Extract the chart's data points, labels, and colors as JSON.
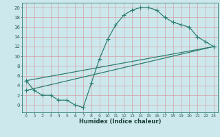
{
  "title": "",
  "xlabel": "Humidex (Indice chaleur)",
  "ylabel": "",
  "bg_color": "#cce8ec",
  "grid_color": "#aacdd4",
  "line_color": "#2e7d6e",
  "xlim": [
    -0.5,
    23.5
  ],
  "ylim": [
    -1.5,
    21.0
  ],
  "xticks": [
    0,
    1,
    2,
    3,
    4,
    5,
    6,
    7,
    8,
    9,
    10,
    11,
    12,
    13,
    14,
    15,
    16,
    17,
    18,
    19,
    20,
    21,
    22,
    23
  ],
  "yticks": [
    0,
    2,
    4,
    6,
    8,
    10,
    12,
    14,
    16,
    18,
    20
  ],
  "curve1_x": [
    0,
    1,
    2,
    3,
    4,
    5,
    6,
    7,
    8,
    9,
    10,
    11,
    12,
    13,
    14,
    15,
    16,
    17,
    18,
    19,
    20,
    21,
    22,
    23
  ],
  "curve1_y": [
    5,
    3,
    2,
    2,
    1,
    1,
    0,
    -0.5,
    4.5,
    9.5,
    13.5,
    16.5,
    18.5,
    19.5,
    20,
    20,
    19.5,
    18,
    17,
    16.5,
    16,
    14,
    13,
    12
  ],
  "curve2_x": [
    0,
    23
  ],
  "curve2_y": [
    5,
    12
  ],
  "curve3_x": [
    0,
    23
  ],
  "curve3_y": [
    3,
    12
  ],
  "marker": "+",
  "markersize": 4,
  "linewidth": 0.9
}
